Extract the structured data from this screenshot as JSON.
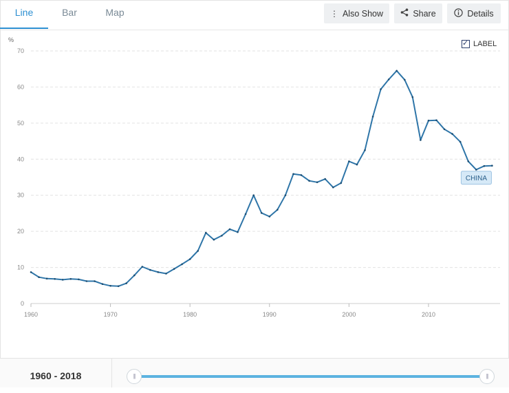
{
  "tabs": [
    {
      "label": "Line",
      "active": true
    },
    {
      "label": "Bar",
      "active": false
    },
    {
      "label": "Map",
      "active": false
    }
  ],
  "toolbar": {
    "also_show": "Also Show",
    "share": "Share",
    "details": "Details",
    "also_show_icon": "vertical-dots-icon",
    "share_icon": "share-icon",
    "details_icon": "info-icon"
  },
  "legend": {
    "label": "LABEL",
    "checked": true
  },
  "range": {
    "start": "1960",
    "end": "2018",
    "separator": "-"
  },
  "colors": {
    "line": "#2e75a8",
    "accent": "#2c8fd1",
    "slider": "#5cb3e0",
    "label_box": "#d6e9f7"
  },
  "chart_data": {
    "type": "line",
    "ylabel": "%",
    "ylim": [
      0,
      70
    ],
    "yticks": [
      0,
      10,
      20,
      30,
      40,
      50,
      60,
      70
    ],
    "xlim": [
      1960,
      2019
    ],
    "xticks": [
      1960,
      1970,
      1980,
      1990,
      2000,
      2010
    ],
    "grid": true,
    "series": [
      {
        "name": "CHINA",
        "x": [
          1960,
          1961,
          1962,
          1963,
          1964,
          1965,
          1966,
          1967,
          1968,
          1969,
          1970,
          1971,
          1972,
          1973,
          1974,
          1975,
          1976,
          1977,
          1978,
          1979,
          1980,
          1981,
          1982,
          1983,
          1984,
          1985,
          1986,
          1987,
          1988,
          1989,
          1990,
          1991,
          1992,
          1993,
          1994,
          1995,
          1996,
          1997,
          1998,
          1999,
          2000,
          2001,
          2002,
          2003,
          2004,
          2005,
          2006,
          2007,
          2008,
          2009,
          2010,
          2011,
          2012,
          2013,
          2014,
          2015,
          2016,
          2017,
          2018
        ],
        "values": [
          8.7,
          7.3,
          6.9,
          6.8,
          6.6,
          6.8,
          6.7,
          6.2,
          6.2,
          5.4,
          4.9,
          4.8,
          5.6,
          7.8,
          10.2,
          9.3,
          8.7,
          8.3,
          9.6,
          10.9,
          12.3,
          14.6,
          19.6,
          17.7,
          18.8,
          20.6,
          19.8,
          24.8,
          30.0,
          25.1,
          24.1,
          26.0,
          30.0,
          35.9,
          35.6,
          34.0,
          33.6,
          34.5,
          32.2,
          33.4,
          39.4,
          38.5,
          42.5,
          51.8,
          59.4,
          62.1,
          64.5,
          62.0,
          57.2,
          45.3,
          50.7,
          50.8,
          48.3,
          47.0,
          44.8,
          39.4,
          37.1,
          38.1,
          38.2
        ]
      }
    ]
  }
}
